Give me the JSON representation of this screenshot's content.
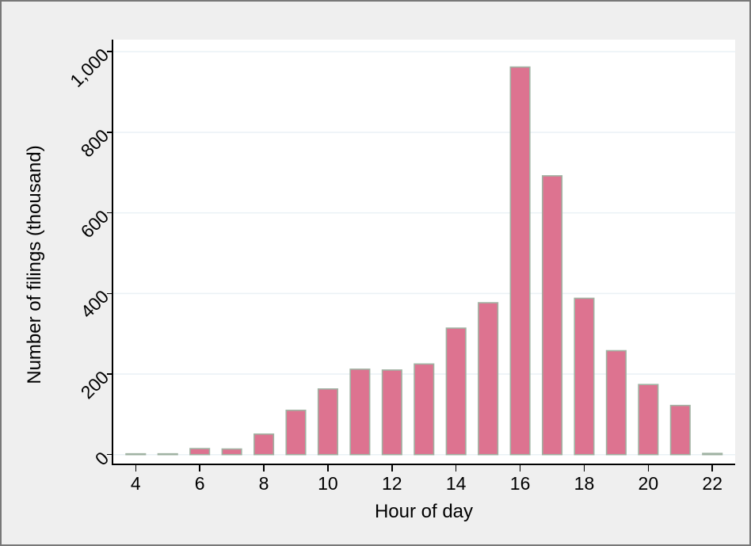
{
  "figure": {
    "background": "#efefef",
    "border_color": "#787878",
    "plot_background": "#ffffff",
    "axis_color": "#000000"
  },
  "chart_data": {
    "type": "bar",
    "title": "",
    "xlabel": "Hour of day",
    "ylabel": "Number of filings (thousand)",
    "x": [
      4,
      5,
      6,
      7,
      8,
      9,
      10,
      11,
      12,
      13,
      14,
      15,
      16,
      17,
      18,
      19,
      20,
      21,
      22
    ],
    "values": [
      2,
      2,
      15,
      14,
      51,
      110,
      163,
      212,
      210,
      225,
      314,
      377,
      962,
      692,
      388,
      258,
      174,
      122,
      3
    ],
    "x_ticks": [
      4,
      6,
      8,
      10,
      12,
      14,
      16,
      18,
      20,
      22
    ],
    "y_ticks": [
      0,
      200,
      400,
      600,
      800,
      1000
    ],
    "y_tick_labels": [
      "0",
      "200",
      "400",
      "600",
      "800",
      "1,000"
    ],
    "ylim": [
      0,
      1030
    ],
    "grid": true,
    "legend": "none",
    "bar_fill": "#dd7390",
    "bar_stroke": "#a0b3a3",
    "gridline_color": "#eaf1f5"
  }
}
